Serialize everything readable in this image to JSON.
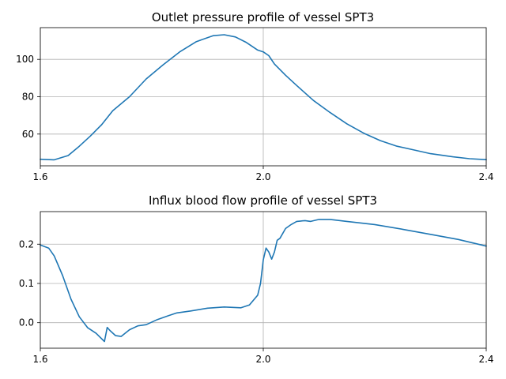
{
  "chart_data": [
    {
      "type": "line",
      "title": "Outlet pressure profile of vessel SPT3",
      "xlabel": "",
      "ylabel": "",
      "xlim": [
        1.6,
        2.4
      ],
      "ylim": [
        43,
        117
      ],
      "xticks": [
        1.6,
        2.0,
        2.4
      ],
      "xtick_labels": [
        "1.6",
        "2.0",
        "2.4"
      ],
      "yticks": [
        60,
        80,
        100
      ],
      "ytick_labels": [
        "60",
        "80",
        "100"
      ],
      "grid": true,
      "color": "#1f77b4",
      "series": [
        {
          "x": [
            1.6,
            1.625,
            1.65,
            1.67,
            1.69,
            1.71,
            1.73,
            1.76,
            1.79,
            1.82,
            1.85,
            1.88,
            1.91,
            1.93,
            1.95,
            1.97,
            1.99,
            2.0,
            2.01,
            2.02,
            2.04,
            2.06,
            2.09,
            2.12,
            2.15,
            2.18,
            2.21,
            2.24,
            2.27,
            2.3,
            2.34,
            2.37,
            2.4
          ],
          "y": [
            46.5,
            46.2,
            48.5,
            53.5,
            59,
            65,
            72.5,
            80,
            89.5,
            97,
            104,
            109.5,
            112.7,
            113.2,
            112,
            109,
            105,
            104,
            102,
            97.5,
            91.5,
            86,
            78,
            71.5,
            65.5,
            60.5,
            56.5,
            53.5,
            51.5,
            49.5,
            47.8,
            46.8,
            46.3
          ]
        }
      ]
    },
    {
      "type": "line",
      "title": "Influx blood flow profile of vessel SPT3",
      "xlabel": "",
      "ylabel": "",
      "xlim": [
        1.6,
        2.4
      ],
      "ylim": [
        -0.065,
        0.283
      ],
      "xticks": [
        1.6,
        2.0,
        2.4
      ],
      "xtick_labels": [
        "1.6",
        "2.0",
        "2.4"
      ],
      "yticks": [
        0.0,
        0.1,
        0.2
      ],
      "ytick_labels": [
        "0.0",
        "0.1",
        "0.2"
      ],
      "grid": true,
      "color": "#1f77b4",
      "series": [
        {
          "x": [
            1.6,
            1.615,
            1.625,
            1.64,
            1.655,
            1.67,
            1.685,
            1.7,
            1.715,
            1.72,
            1.725,
            1.735,
            1.745,
            1.76,
            1.775,
            1.79,
            1.81,
            1.83,
            1.845,
            1.87,
            1.9,
            1.93,
            1.96,
            1.975,
            1.99,
            1.995,
            2.0,
            2.005,
            2.01,
            2.015,
            2.02,
            2.025,
            2.03,
            2.04,
            2.05,
            2.06,
            2.075,
            2.085,
            2.1,
            2.12,
            2.15,
            2.2,
            2.25,
            2.3,
            2.35,
            2.4
          ],
          "y": [
            0.198,
            0.19,
            0.17,
            0.12,
            0.06,
            0.015,
            -0.013,
            -0.027,
            -0.048,
            -0.012,
            -0.02,
            -0.033,
            -0.035,
            -0.018,
            -0.008,
            -0.005,
            0.008,
            0.018,
            0.025,
            0.03,
            0.037,
            0.04,
            0.038,
            0.045,
            0.07,
            0.1,
            0.16,
            0.19,
            0.18,
            0.162,
            0.18,
            0.21,
            0.215,
            0.24,
            0.25,
            0.258,
            0.26,
            0.258,
            0.263,
            0.263,
            0.258,
            0.25,
            0.238,
            0.225,
            0.212,
            0.195
          ]
        }
      ]
    }
  ]
}
